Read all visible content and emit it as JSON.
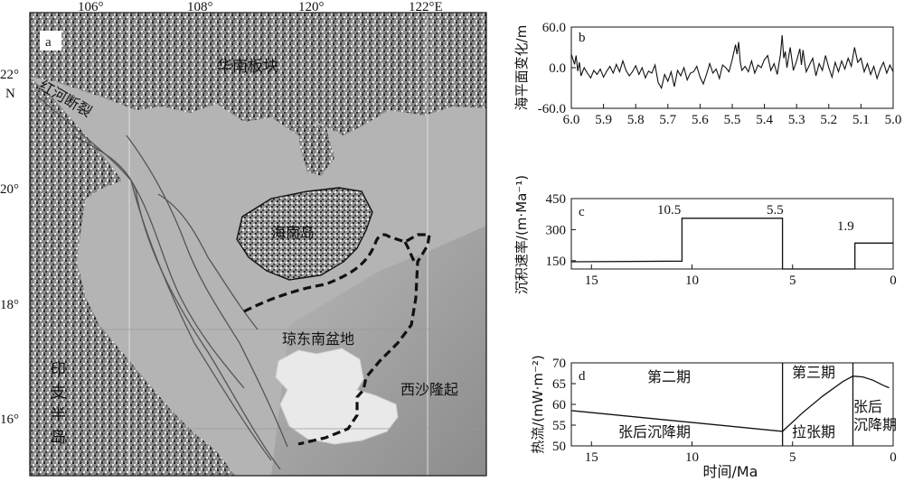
{
  "map": {
    "panel_label": "a",
    "top_ticks": [
      "106°",
      "108°",
      "120°",
      "122°E"
    ],
    "left_ticks": [
      "22°",
      "20°",
      "18°",
      "16°"
    ],
    "left_unit": "N",
    "labels": {
      "south_china_plate": "华南板块",
      "red_river_fault": "红河断裂",
      "hainan_island": "海南岛",
      "qiongdongnan_basin": "琼东南盆地",
      "xisha_uplift": "西沙隆起",
      "indochina_1": "印",
      "indochina_2": "支",
      "indochina_3": "半",
      "indochina_4": "岛"
    }
  },
  "chart_data": [
    {
      "id": "b",
      "type": "line",
      "panel_label": "b",
      "ylabel": "海平面变化/m",
      "xlabel": "",
      "xlim": [
        6.0,
        5.0
      ],
      "ylim": [
        -60,
        60
      ],
      "x_ticks": [
        "6.0",
        "5.9",
        "5.8",
        "5.7",
        "5.6",
        "5.5",
        "5.4",
        "5.3",
        "5.2",
        "5.1",
        "5.0"
      ],
      "y_ticks": [
        "60.0",
        "0.0",
        "-60.0"
      ],
      "series": [
        {
          "x": [
            6.0,
            5.99,
            5.985,
            5.98,
            5.975,
            5.97,
            5.96,
            5.95,
            5.94,
            5.93,
            5.92,
            5.91,
            5.9,
            5.89,
            5.88,
            5.87,
            5.86,
            5.85,
            5.84,
            5.83,
            5.82,
            5.81,
            5.8,
            5.79,
            5.78,
            5.77,
            5.76,
            5.75,
            5.74,
            5.73,
            5.72,
            5.71,
            5.7,
            5.69,
            5.68,
            5.67,
            5.66,
            5.65,
            5.64,
            5.63,
            5.62,
            5.61,
            5.6,
            5.59,
            5.58,
            5.57,
            5.56,
            5.55,
            5.54,
            5.53,
            5.52,
            5.51,
            5.5,
            5.49,
            5.485,
            5.48,
            5.475,
            5.47,
            5.46,
            5.45,
            5.44,
            5.43,
            5.42,
            5.41,
            5.4,
            5.39,
            5.38,
            5.37,
            5.36,
            5.35,
            5.345,
            5.34,
            5.335,
            5.33,
            5.32,
            5.31,
            5.3,
            5.29,
            5.285,
            5.28,
            5.275,
            5.27,
            5.26,
            5.25,
            5.24,
            5.23,
            5.22,
            5.21,
            5.2,
            5.19,
            5.18,
            5.17,
            5.16,
            5.15,
            5.14,
            5.13,
            5.12,
            5.11,
            5.1,
            5.09,
            5.08,
            5.07,
            5.06,
            5.05,
            5.04,
            5.03,
            5.02,
            5.01,
            5.0
          ],
          "y": [
            20,
            5,
            18,
            -5,
            8,
            -12,
            0,
            -8,
            -15,
            -4,
            -10,
            -2,
            -14,
            -5,
            2,
            -8,
            5,
            -6,
            10,
            -4,
            -12,
            -6,
            3,
            -10,
            0,
            -15,
            -5,
            -8,
            4,
            -22,
            -30,
            -10,
            -20,
            -6,
            -28,
            -4,
            -12,
            0,
            -18,
            -8,
            -6,
            2,
            -14,
            -24,
            -10,
            6,
            -8,
            -2,
            -16,
            4,
            0,
            -6,
            12,
            34,
            20,
            38,
            8,
            -4,
            2,
            -6,
            10,
            -8,
            4,
            0,
            12,
            18,
            -4,
            6,
            -10,
            20,
            48,
            14,
            24,
            0,
            30,
            -4,
            10,
            28,
            4,
            26,
            8,
            -6,
            4,
            14,
            -12,
            6,
            -4,
            18,
            0,
            -14,
            8,
            -6,
            10,
            -2,
            14,
            2,
            30,
            8,
            14,
            -6,
            6,
            -10,
            2,
            -16,
            -2,
            8,
            -8,
            4,
            -6
          ]
        }
      ]
    },
    {
      "id": "c",
      "type": "line",
      "panel_label": "c",
      "ylabel": "沉积速率/(m·Ma⁻¹)",
      "xlabel": "",
      "xlim": [
        16,
        0
      ],
      "ylim": [
        110,
        450
      ],
      "x_ticks": [
        "15",
        "10",
        "5",
        "0"
      ],
      "y_ticks": [
        "450",
        "300",
        "150"
      ],
      "annotations": [
        "10.5",
        "5.5",
        "1.9"
      ],
      "series": [
        {
          "x": [
            16,
            10.5,
            10.5,
            5.5,
            5.5,
            1.9,
            1.9,
            0
          ],
          "y": [
            145,
            148,
            355,
            355,
            110,
            110,
            235,
            235
          ]
        }
      ]
    },
    {
      "id": "d",
      "type": "line",
      "panel_label": "d",
      "ylabel": "热流/(mW·m⁻²)",
      "xlabel": "时间/Ma",
      "xlim": [
        16,
        0
      ],
      "ylim": [
        50,
        70
      ],
      "x_ticks": [
        "15",
        "10",
        "5",
        "0"
      ],
      "y_ticks": [
        "70",
        "65",
        "60",
        "55",
        "50"
      ],
      "phase_lines": [
        5.5,
        2.0
      ],
      "phases": {
        "phase2": "第二期",
        "phase3": "第三期",
        "post_rift_1": "张后沉降期",
        "rifting": "拉张期",
        "post_rift_2a": "张后",
        "post_rift_2b": "沉降期"
      },
      "series": [
        {
          "x": [
            16,
            5.5,
            4.5,
            3.5,
            2.5,
            2.0,
            1.5,
            1.0,
            0.5,
            0.2
          ],
          "y": [
            58.5,
            53.5,
            58,
            62,
            65.5,
            66.8,
            66.6,
            65.8,
            64.6,
            64
          ]
        }
      ]
    }
  ]
}
